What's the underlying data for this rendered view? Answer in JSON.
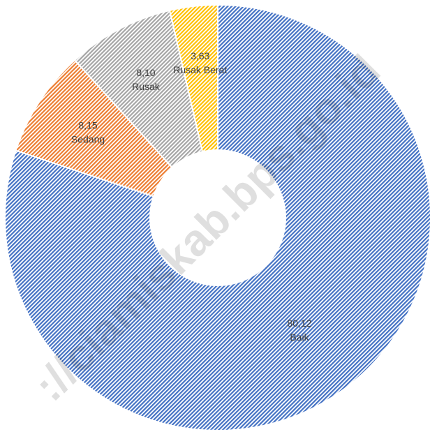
{
  "chart_data": {
    "type": "donut",
    "categories": [
      "Baik",
      "Sedang",
      "Rusak",
      "Rusak Berat"
    ],
    "values": [
      80.12,
      8.15,
      8.1,
      3.63
    ],
    "value_labels": [
      "80,12",
      "8,15",
      "8,10",
      "3,63"
    ],
    "colors": [
      "#4472c4",
      "#ed7d31",
      "#a5a5a5",
      "#ffc000"
    ],
    "watermark": "://ciamiskab.bps.go.id"
  }
}
